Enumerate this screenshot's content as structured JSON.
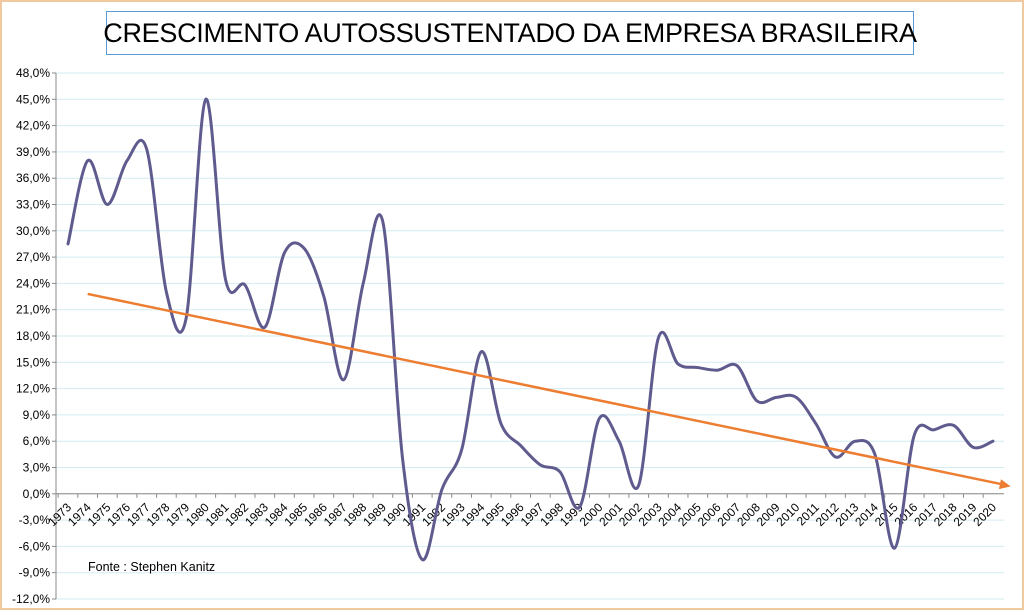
{
  "chart_data": {
    "type": "line",
    "title": "CRESCIMENTO AUTOSSUSTENTADO DA EMPRESA BRASILEIRA",
    "source_note": "Fonte : Stephen  Kanitz",
    "ylim": [
      -12,
      48
    ],
    "ytick_step": 3,
    "grid": true,
    "legend": "none",
    "colors": {
      "series": "#5f5b8e",
      "trend": "#ed7d31",
      "grid": "#d3ecf2",
      "frame": "#f0c9a0",
      "title_border": "#5b9bd5"
    },
    "x": [
      "1973",
      "1974",
      "1975",
      "1976",
      "1977",
      "1978",
      "1979",
      "1980",
      "1981",
      "1982",
      "1983",
      "1984",
      "1985",
      "1986",
      "1987",
      "1988",
      "1989",
      "1990",
      "1991",
      "1992",
      "1993",
      "1994",
      "1995",
      "1996",
      "1997",
      "1998",
      "1999",
      "2000",
      "2001",
      "2002",
      "2003",
      "2004",
      "2005",
      "2006",
      "2007",
      "2008",
      "2009",
      "2010",
      "2011",
      "2012",
      "2013",
      "2014",
      "2015",
      "2016",
      "2017",
      "2018",
      "2019",
      "2020"
    ],
    "series": [
      {
        "values": [
          28.5,
          38.0,
          33.0,
          38.0,
          39.3,
          23.0,
          20.0,
          45.0,
          24.5,
          23.8,
          19.0,
          27.5,
          28.0,
          22.5,
          13.0,
          24.0,
          31.0,
          4.0,
          -7.5,
          0.5,
          5.0,
          16.2,
          8.0,
          5.5,
          3.3,
          2.5,
          -1.5,
          8.6,
          6.0,
          1.0,
          17.8,
          14.8,
          14.4,
          14.1,
          14.6,
          10.6,
          11.0,
          11.0,
          8.0,
          4.2,
          6.0,
          4.5,
          -6.2,
          6.7,
          7.3,
          7.8,
          5.3,
          6.0
        ]
      }
    ],
    "trend": {
      "from": [
        "1974",
        22.8
      ],
      "to": [
        "2020",
        0.5
      ]
    }
  }
}
